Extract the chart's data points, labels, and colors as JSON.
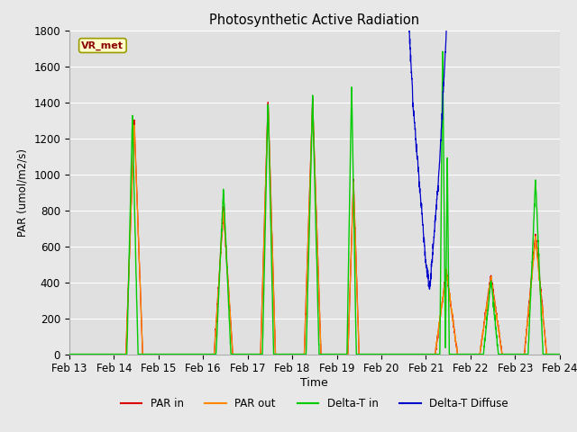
{
  "title": "Photosynthetic Active Radiation",
  "ylabel": "PAR (umol/m2/s)",
  "xlabel": "Time",
  "annotation_label": "VR_met",
  "ylim": [
    0,
    1800
  ],
  "fig_bg": "#e8e8e8",
  "plot_bg": "#e0e0e0",
  "legend_entries": [
    "PAR in",
    "PAR out",
    "Delta-T in",
    "Delta-T Diffuse"
  ],
  "line_colors": {
    "par_in": "#dd0000",
    "par_out": "#ff8800",
    "delta_t_in": "#00cc00",
    "delta_t_diffuse": "#0000cc"
  },
  "legend_colors": [
    "#dd0000",
    "#ff8800",
    "#00cc00",
    "#0000cc"
  ],
  "x_tick_labels": [
    "Feb 13",
    "Feb 14",
    "Feb 15",
    "Feb 16",
    "Feb 17",
    "Feb 18",
    "Feb 19",
    "Feb 20",
    "Feb 21",
    "Feb 22",
    "Feb 23",
    "Feb 24"
  ],
  "x_tick_positions": [
    0,
    24,
    48,
    72,
    96,
    120,
    144,
    168,
    192,
    216,
    240,
    264
  ],
  "yticks": [
    0,
    200,
    400,
    600,
    800,
    1000,
    1200,
    1400,
    1600,
    1800
  ]
}
